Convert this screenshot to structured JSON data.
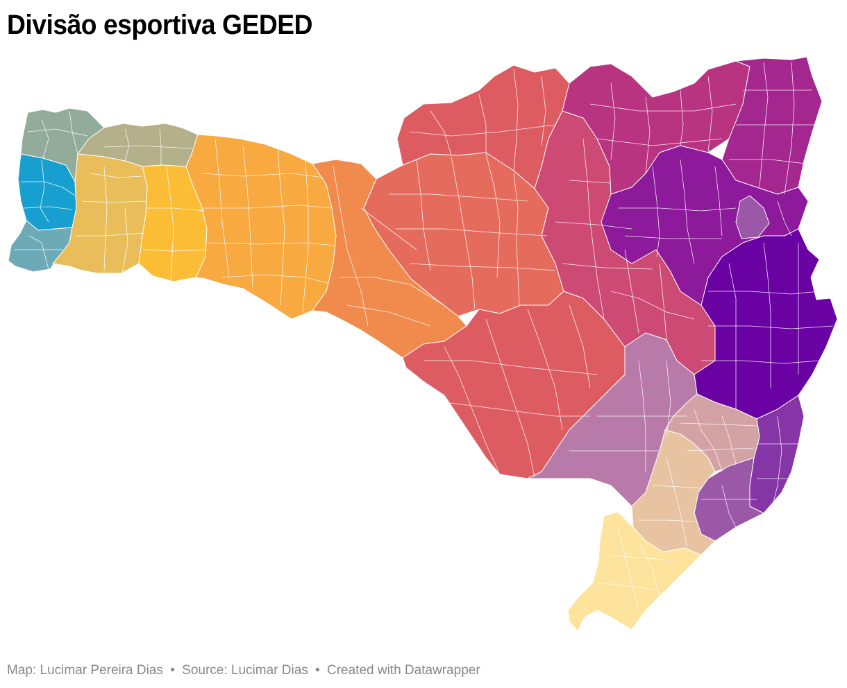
{
  "title": "Divisão esportiva GEDED",
  "footer": {
    "map_credit": "Map: Lucimar Pereira Dias",
    "separator": "•",
    "source": "Source: Lucimar Dias",
    "created": "Created with Datawrapper"
  },
  "colors": {
    "blue": "#17a0cf",
    "teal_grey": "#6ea9b8",
    "sage": "#93ab9b",
    "khaki": "#b3b08a",
    "mustard": "#e9be5a",
    "golden": "#fbbd35",
    "orange_light": "#f8a93f",
    "orange": "#f08b4d",
    "coral": "#e56b5c",
    "red_coral": "#dd5c62",
    "rose": "#cc4a73",
    "magenta": "#b83380",
    "magenta_purple": "#a3278f",
    "purple": "#8c1a9a",
    "lavender": "#9b58a6",
    "deep_purple": "#6a02a3",
    "violet": "#8535a5",
    "mauve": "#b87aa9",
    "dusty_pink": "#d3a2a4",
    "peach": "#e8c3a2",
    "pale_yellow": "#fde39b"
  }
}
